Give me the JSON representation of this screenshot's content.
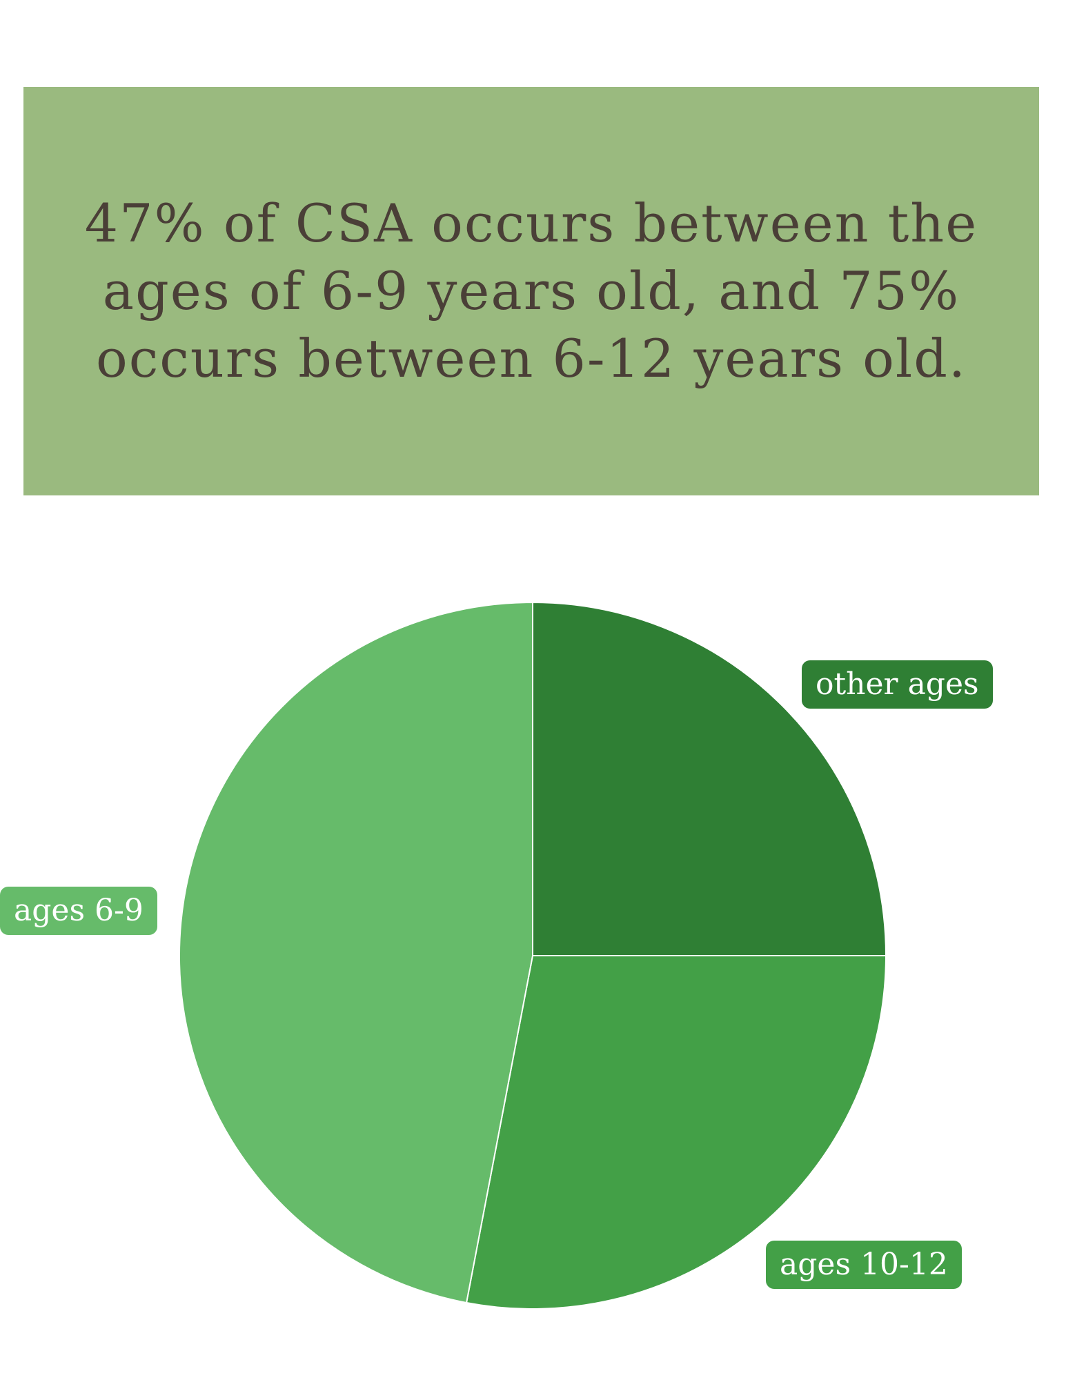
{
  "headline": "47% of CSA occurs between the ages of 6-9 years old, and 75% occurs between 6-12 years old.",
  "colors": {
    "banner_bg": "#9aba7f",
    "banner_text": "#4a3f37"
  },
  "chart_data": {
    "type": "pie",
    "start_angle_deg": 0,
    "direction": "clockwise",
    "slices": [
      {
        "label": "other ages",
        "value": 25,
        "color": "#2f7f34"
      },
      {
        "label": "ages 10-12",
        "value": 28,
        "color": "#43a047"
      },
      {
        "label": "ages 6-9",
        "value": 47,
        "color": "#66bb6a"
      }
    ]
  }
}
